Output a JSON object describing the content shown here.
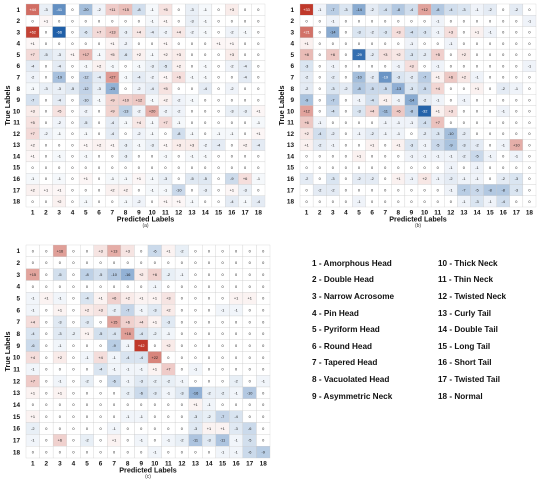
{
  "chart_data": [
    {
      "type": "heatmap",
      "caption": "(a)",
      "xlabel": "Predicted Labels",
      "ylabel": "True Labels",
      "categories": [
        "1",
        "2",
        "3",
        "4",
        "5",
        "6",
        "7",
        "8",
        "9",
        "10",
        "11",
        "12",
        "13",
        "14",
        "15",
        "16",
        "17",
        "18"
      ],
      "values": [
        [
          44,
          -3,
          -41,
          0,
          -20,
          -2,
          11,
          15,
          -8,
          -1,
          5,
          0,
          -3,
          -1,
          0,
          3,
          0,
          0
        ],
        [
          0,
          1,
          0,
          0,
          0,
          0,
          0,
          0,
          0,
          -1,
          1,
          0,
          -3,
          -1,
          0,
          0,
          0,
          0
        ],
        [
          62,
          0,
          -66,
          0,
          -6,
          7,
          13,
          -3,
          4,
          -4,
          -2,
          4,
          -2,
          -1,
          0,
          -2,
          -1,
          0
        ],
        [
          1,
          0,
          0,
          0,
          0,
          0,
          1,
          -2,
          0,
          0,
          1,
          0,
          0,
          0,
          1,
          1,
          0,
          0
        ],
        [
          7,
          -5,
          -3,
          1,
          17,
          -1,
          5,
          -6,
          2,
          -1,
          2,
          3,
          0,
          0,
          0,
          3,
          0,
          0
        ],
        [
          -4,
          0,
          -4,
          0,
          -1,
          2,
          -1,
          0,
          -1,
          -3,
          -5,
          2,
          0,
          -1,
          0,
          -2,
          -4,
          0
        ],
        [
          -2,
          0,
          -19,
          0,
          -12,
          -4,
          27,
          -1,
          -4,
          -2,
          1,
          6,
          -1,
          -1,
          0,
          0,
          -4,
          0
        ],
        [
          -1,
          -3,
          -3,
          -5,
          -12,
          -3,
          -25,
          0,
          -2,
          -4,
          5,
          0,
          0,
          -4,
          0,
          -2,
          0,
          0
        ],
        [
          -7,
          0,
          -4,
          0,
          -10,
          -1,
          9,
          10,
          12,
          -1,
          2,
          -2,
          -1,
          0,
          0,
          0,
          0,
          0
        ],
        [
          3,
          0,
          5,
          0,
          -2,
          0,
          9,
          -13,
          -2,
          20,
          -2,
          -2,
          0,
          0,
          0,
          -3,
          -3,
          1
        ],
        [
          5,
          0,
          -2,
          0,
          -5,
          0,
          -4,
          -1,
          4,
          -1,
          7,
          -1,
          0,
          0,
          0,
          0,
          0,
          -1
        ],
        [
          7,
          -2,
          -1,
          0,
          -1,
          0,
          -4,
          0,
          -2,
          -1,
          0,
          -8,
          -1,
          0,
          -1,
          -1,
          0,
          1
        ],
        [
          2,
          0,
          0,
          0,
          1,
          2,
          1,
          -3,
          -1,
          -3,
          1,
          3,
          3,
          -2,
          -4,
          0,
          2,
          -4
        ],
        [
          1,
          0,
          -1,
          0,
          -1,
          0,
          0,
          -3,
          0,
          0,
          -1,
          0,
          -1,
          -1,
          0,
          0,
          0,
          0
        ],
        [
          0,
          0,
          0,
          0,
          0,
          0,
          0,
          0,
          0,
          0,
          0,
          0,
          0,
          0,
          0,
          0,
          0,
          0
        ],
        [
          -1,
          0,
          -1,
          0,
          1,
          0,
          -1,
          -1,
          1,
          -1,
          -3,
          0,
          -5,
          -5,
          0,
          -9,
          6,
          -1
        ],
        [
          2,
          1,
          1,
          0,
          0,
          0,
          2,
          2,
          0,
          -1,
          -1,
          -10,
          0,
          -3,
          0,
          1,
          -3,
          0
        ],
        [
          0,
          0,
          2,
          0,
          -1,
          0,
          0,
          -1,
          -2,
          0,
          1,
          1,
          -1,
          0,
          0,
          -4,
          -1,
          -4
        ]
      ]
    },
    {
      "type": "heatmap",
      "caption": "(b)",
      "xlabel": "Predicted Labels",
      "ylabel": "True Labels",
      "categories": [
        "1",
        "2",
        "3",
        "4",
        "5",
        "6",
        "7",
        "8",
        "9",
        "10",
        "11",
        "12",
        "13",
        "14",
        "15",
        "16",
        "17",
        "18"
      ],
      "values": [
        [
          33,
          -1,
          -7,
          -3,
          -14,
          -2,
          -4,
          -8,
          -4,
          12,
          -8,
          -4,
          -3,
          -1,
          -2,
          0,
          -2,
          0
        ],
        [
          0,
          0,
          -1,
          0,
          0,
          0,
          0,
          0,
          0,
          0,
          -1,
          0,
          0,
          0,
          0,
          0,
          0,
          -1
        ],
        [
          21,
          0,
          -14,
          0,
          -3,
          -2,
          -3,
          3,
          -4,
          -3,
          -1,
          3,
          0,
          1,
          -1,
          0,
          0,
          0
        ],
        [
          1,
          0,
          0,
          0,
          0,
          0,
          0,
          0,
          -1,
          0,
          0,
          -1,
          0,
          0,
          0,
          0,
          0,
          0
        ],
        [
          8,
          0,
          6,
          0,
          -29,
          -2,
          3,
          2,
          -3,
          -2,
          5,
          0,
          2,
          0,
          0,
          0,
          0,
          0
        ],
        [
          -3,
          0,
          -1,
          0,
          0,
          0,
          0,
          -1,
          3,
          0,
          -1,
          0,
          0,
          0,
          0,
          0,
          0,
          -1
        ],
        [
          -2,
          0,
          -2,
          0,
          -10,
          -2,
          -19,
          -3,
          -2,
          -7,
          1,
          6,
          2,
          -1,
          0,
          0,
          0,
          0
        ],
        [
          -2,
          0,
          -3,
          -2,
          -8,
          -5,
          -5,
          -13,
          -3,
          -5,
          4,
          0,
          0,
          1,
          0,
          -2,
          -1,
          0
        ],
        [
          -9,
          0,
          -7,
          0,
          -1,
          -4,
          1,
          -1,
          -14,
          -2,
          -1,
          0,
          -1,
          0,
          0,
          0,
          0,
          0
        ],
        [
          12,
          0,
          -4,
          0,
          -3,
          4,
          -11,
          6,
          -8,
          -32,
          1,
          3,
          0,
          0,
          0,
          -1,
          0,
          0
        ],
        [
          6,
          -1,
          0,
          0,
          0,
          0,
          -1,
          -1,
          -1,
          -4,
          7,
          0,
          0,
          0,
          0,
          0,
          0,
          0
        ],
        [
          2,
          -4,
          -2,
          0,
          -1,
          -2,
          -1,
          -1,
          0,
          -2,
          -3,
          -10,
          -2,
          0,
          0,
          0,
          0,
          0
        ],
        [
          1,
          -2,
          -1,
          0,
          0,
          1,
          0,
          1,
          -3,
          -1,
          -5,
          -9,
          -3,
          -2,
          0,
          -1,
          10,
          0
        ],
        [
          0,
          0,
          0,
          0,
          1,
          0,
          0,
          0,
          -1,
          -1,
          -1,
          -1,
          -2,
          -5,
          -1,
          0,
          -1,
          0
        ],
        [
          0,
          0,
          0,
          0,
          0,
          0,
          0,
          0,
          0,
          0,
          0,
          -1,
          0,
          -1,
          0,
          0,
          0,
          0
        ],
        [
          -2,
          0,
          -3,
          0,
          -2,
          -2,
          0,
          1,
          -1,
          2,
          -1,
          -2,
          -1,
          -1,
          0,
          -2,
          -3,
          0
        ],
        [
          0,
          -2,
          -2,
          0,
          0,
          0,
          0,
          0,
          0,
          0,
          0,
          -1,
          -7,
          -5,
          -8,
          -8,
          -3,
          0
        ],
        [
          0,
          0,
          0,
          0,
          -1,
          0,
          0,
          0,
          0,
          0,
          0,
          0,
          -1,
          -3,
          -1,
          -4,
          0,
          0
        ]
      ]
    },
    {
      "type": "heatmap",
      "caption": "(c)",
      "xlabel": "Predicted Labels",
      "ylabel": "True Labels",
      "categories": [
        "1",
        "2",
        "3",
        "4",
        "5",
        "6",
        "7",
        "8",
        "9",
        "10",
        "11",
        "12",
        "13",
        "14",
        "15",
        "16",
        "17",
        "18"
      ],
      "values": [
        [
          0,
          0,
          16,
          0,
          0,
          3,
          13,
          3,
          0,
          -6,
          1,
          -2,
          0,
          0,
          0,
          0,
          0,
          0
        ],
        [
          0,
          0,
          0,
          0,
          0,
          0,
          0,
          0,
          0,
          0,
          0,
          0,
          0,
          0,
          0,
          0,
          0,
          0
        ],
        [
          15,
          0,
          -5,
          0,
          -8,
          -5,
          -10,
          -16,
          2,
          6,
          -2,
          -1,
          0,
          0,
          0,
          0,
          0,
          0
        ],
        [
          0,
          0,
          0,
          0,
          0,
          0,
          0,
          0,
          0,
          -1,
          0,
          0,
          0,
          0,
          0,
          0,
          0,
          0
        ],
        [
          -1,
          1,
          -1,
          0,
          -4,
          1,
          6,
          2,
          1,
          1,
          3,
          0,
          0,
          0,
          0,
          1,
          1,
          0
        ],
        [
          -1,
          0,
          1,
          0,
          2,
          3,
          -2,
          -7,
          -1,
          -3,
          2,
          0,
          0,
          0,
          -1,
          -1,
          0,
          0
        ],
        [
          4,
          0,
          -3,
          0,
          -3,
          0,
          15,
          6,
          4,
          1,
          -3,
          0,
          0,
          0,
          0,
          0,
          0,
          0
        ],
        [
          -4,
          0,
          -3,
          -2,
          1,
          -5,
          -4,
          16,
          -4,
          -2,
          -1,
          0,
          0,
          0,
          0,
          0,
          0,
          0
        ],
        [
          -6,
          0,
          -1,
          0,
          0,
          0,
          -9,
          -1,
          42,
          0,
          2,
          0,
          0,
          0,
          0,
          0,
          0,
          0
        ],
        [
          4,
          0,
          2,
          0,
          -1,
          4,
          -1,
          -4,
          -4,
          22,
          0,
          0,
          0,
          0,
          0,
          0,
          0,
          0
        ],
        [
          -1,
          0,
          0,
          0,
          0,
          -4,
          -1,
          -1,
          -1,
          1,
          7,
          0,
          -1,
          0,
          0,
          0,
          0,
          0
        ],
        [
          7,
          0,
          -1,
          0,
          -2,
          0,
          -6,
          -1,
          -3,
          -2,
          -2,
          -1,
          0,
          0,
          0,
          -2,
          0,
          -1
        ],
        [
          1,
          0,
          1,
          0,
          0,
          0,
          0,
          -2,
          -6,
          -3,
          -1,
          -3,
          -16,
          -2,
          -2,
          -1,
          -10,
          0
        ],
        [
          0,
          0,
          0,
          0,
          0,
          0,
          0,
          0,
          0,
          0,
          0,
          0,
          1,
          -1,
          0,
          0,
          0,
          0
        ],
        [
          1,
          0,
          0,
          0,
          0,
          0,
          0,
          -1,
          -1,
          0,
          0,
          0,
          -3,
          -2,
          -7,
          -4,
          0,
          0
        ],
        [
          -2,
          0,
          0,
          0,
          0,
          0,
          -1,
          0,
          0,
          0,
          0,
          0,
          -3,
          1,
          1,
          -3,
          -6,
          0
        ],
        [
          -1,
          0,
          6,
          0,
          -2,
          0,
          1,
          0,
          -1,
          0,
          -1,
          -2,
          -11,
          -3,
          -11,
          -1,
          -5,
          0
        ],
        [
          0,
          0,
          0,
          0,
          0,
          0,
          0,
          0,
          0,
          -1,
          0,
          0,
          0,
          0,
          -1,
          -1,
          -6,
          -9
        ]
      ]
    }
  ],
  "legend": [
    [
      "1 - Amorphous Head",
      "10 - Thick Neck"
    ],
    [
      "2 - Double Head",
      "11 - Thin Neck"
    ],
    [
      "3 - Narrow Acrosome",
      "12 - Twisted Neck"
    ],
    [
      "4 - Pin Head",
      "13 - Curly Tail"
    ],
    [
      "5 - Pyriform Head",
      "14 - Double Tail"
    ],
    [
      "6 - Round Head",
      "15 - Long Tail"
    ],
    [
      "7 - Tapered Head",
      "16 - Short Tail"
    ],
    [
      "8 - Vacuolated Head",
      "17 - Twisted Tail"
    ],
    [
      "9 - Asymmetric Neck",
      "18 - Normal"
    ]
  ],
  "colors": {
    "positive": "#c0392b",
    "negative": "#1f5fa8",
    "neutral": "#ffffff",
    "grid": "#c8c8c8"
  }
}
